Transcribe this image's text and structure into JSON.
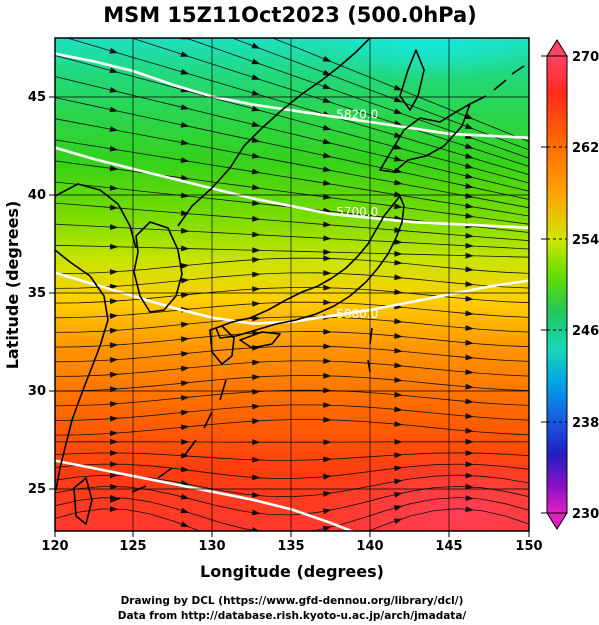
{
  "title": "MSM 15Z11Oct2023 (500.0hPa)",
  "x_axis": {
    "label": "Longitude (degrees)",
    "ticks": [
      "120",
      "125",
      "130",
      "135",
      "140",
      "145",
      "150"
    ],
    "range": [
      120,
      150
    ]
  },
  "y_axis": {
    "label": "Latitude  (degrees)",
    "ticks": [
      "25",
      "30",
      "35",
      "40",
      "45"
    ],
    "range": [
      22.4,
      47.6
    ]
  },
  "colorbar": {
    "ticks": [
      "270",
      "262",
      "254",
      "246",
      "238",
      "230"
    ],
    "range": [
      230,
      270
    ],
    "colors": [
      "#ff4466",
      "#ff2b1b",
      "#ff6f00",
      "#ffa200",
      "#d2e600",
      "#66dd00",
      "#22c85a",
      "#18d8b8",
      "#00a0e8",
      "#1858e0",
      "#2020c0",
      "#8a10c8",
      "#e020c0"
    ]
  },
  "contours": [
    {
      "label": "5820.0",
      "lat_at_140": 43.6
    },
    {
      "label": "5700.0",
      "lat_at_140": 38.6
    },
    {
      "label": "5880.0",
      "lat_at_140": 33.4
    },
    {
      "label": "",
      "lat_at_140": 24.4
    }
  ],
  "credits": {
    "line1": "Drawing by DCL (https://www.gfd-dennou.org/library/dcl/)",
    "line2": "Data from http://database.rish.kyoto-u.ac.jp/arch/jmadata/"
  },
  "colors": {
    "coast": "#000000",
    "contour": "#ffffff",
    "streamline": "#111111"
  }
}
